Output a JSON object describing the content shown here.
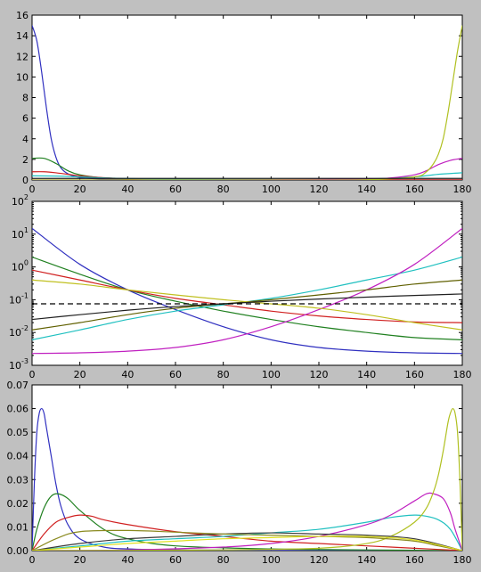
{
  "figure": {
    "background": "#c0c0c0"
  },
  "chart_data": [
    {
      "type": "line",
      "yscale": "linear",
      "xlim": [
        0,
        180
      ],
      "ylim": [
        0,
        16
      ],
      "xticks": [
        0,
        20,
        40,
        60,
        80,
        100,
        120,
        140,
        160,
        180
      ],
      "xtick_labels": [
        "0",
        "20",
        "40",
        "60",
        "80",
        "100",
        "120",
        "140",
        "160",
        "180"
      ],
      "yticks": [
        0,
        2,
        4,
        6,
        8,
        10,
        12,
        14,
        16
      ],
      "ytick_labels": [
        "0",
        "2",
        "4",
        "6",
        "8",
        "10",
        "12",
        "14",
        "16"
      ],
      "series": [
        {
          "color": "#3030c0",
          "x": [
            0,
            2,
            4,
            6,
            8,
            10,
            12,
            15,
            20,
            30,
            40,
            60,
            100,
            140,
            180
          ],
          "values": [
            15.0,
            13.5,
            10.5,
            7.0,
            4.0,
            2.2,
            1.2,
            0.6,
            0.25,
            0.08,
            0.04,
            0.015,
            0.005,
            0.003,
            0.002
          ]
        },
        {
          "color": "#208020",
          "x": [
            0,
            5,
            10,
            15,
            20,
            30,
            40,
            60,
            100,
            140,
            180
          ],
          "values": [
            2.1,
            2.1,
            1.6,
            0.9,
            0.5,
            0.2,
            0.1,
            0.04,
            0.01,
            0.006,
            0.005
          ]
        },
        {
          "color": "#d02020",
          "x": [
            0,
            5,
            10,
            15,
            20,
            30,
            40,
            60,
            100,
            140,
            180
          ],
          "values": [
            0.8,
            0.8,
            0.7,
            0.55,
            0.4,
            0.22,
            0.12,
            0.05,
            0.02,
            0.015,
            0.012
          ]
        },
        {
          "color": "#20c0c0",
          "x": [
            0,
            10,
            20,
            30,
            40,
            60,
            100,
            140,
            160,
            170,
            180
          ],
          "values": [
            0.4,
            0.38,
            0.3,
            0.2,
            0.14,
            0.08,
            0.05,
            0.1,
            0.3,
            0.55,
            0.7
          ]
        },
        {
          "color": "#c020c0",
          "x": [
            0,
            40,
            100,
            140,
            150,
            160,
            165,
            170,
            175,
            180
          ],
          "values": [
            0.002,
            0.004,
            0.02,
            0.1,
            0.2,
            0.5,
            0.9,
            1.5,
            1.9,
            2.1
          ]
        },
        {
          "color": "#b0c020",
          "x": [
            0,
            40,
            100,
            140,
            160,
            165,
            168,
            170,
            172,
            174,
            176,
            178,
            180
          ],
          "values": [
            0.002,
            0.003,
            0.005,
            0.02,
            0.3,
            0.8,
            1.6,
            2.5,
            4.0,
            6.5,
            9.5,
            12.5,
            15.0
          ]
        },
        {
          "color": "#202020",
          "x": [
            0,
            180
          ],
          "values": [
            0.15,
            0.15
          ]
        }
      ]
    },
    {
      "type": "line",
      "yscale": "log",
      "xlim": [
        0,
        180
      ],
      "ylim": [
        0.001,
        100
      ],
      "xticks": [
        0,
        20,
        40,
        60,
        80,
        100,
        120,
        140,
        160,
        180
      ],
      "xtick_labels": [
        "0",
        "20",
        "40",
        "60",
        "80",
        "100",
        "120",
        "140",
        "160",
        "180"
      ],
      "yticks": [
        0.001,
        0.01,
        0.1,
        1,
        10,
        100
      ],
      "ytick_labels": [
        {
          "base": "10",
          "exp": "-3"
        },
        {
          "base": "10",
          "exp": "-2"
        },
        {
          "base": "10",
          "exp": "-1"
        },
        {
          "base": "10",
          "exp": "0"
        },
        {
          "base": "10",
          "exp": "1"
        },
        {
          "base": "10",
          "exp": "2"
        }
      ],
      "reference_line": {
        "y": 0.075,
        "style": "dashed",
        "color": "#000000"
      },
      "series": [
        {
          "color": "#3030c0",
          "x": [
            0,
            20,
            40,
            60,
            80,
            100,
            120,
            140,
            160,
            180
          ],
          "values": [
            15,
            1.2,
            0.2,
            0.05,
            0.015,
            0.006,
            0.0035,
            0.0027,
            0.0024,
            0.0023
          ]
        },
        {
          "color": "#208020",
          "x": [
            0,
            20,
            40,
            60,
            80,
            100,
            120,
            140,
            160,
            180
          ],
          "values": [
            2.0,
            0.6,
            0.2,
            0.09,
            0.045,
            0.025,
            0.015,
            0.01,
            0.007,
            0.006
          ]
        },
        {
          "color": "#d02020",
          "x": [
            0,
            20,
            40,
            60,
            80,
            100,
            120,
            140,
            160,
            180
          ],
          "values": [
            0.8,
            0.4,
            0.2,
            0.11,
            0.07,
            0.045,
            0.032,
            0.025,
            0.021,
            0.02
          ]
        },
        {
          "color": "#20c0c0",
          "x": [
            0,
            20,
            40,
            60,
            80,
            100,
            120,
            140,
            160,
            180
          ],
          "values": [
            0.006,
            0.012,
            0.025,
            0.045,
            0.07,
            0.11,
            0.2,
            0.4,
            0.8,
            2.0
          ]
        },
        {
          "color": "#c020c0",
          "x": [
            0,
            20,
            40,
            60,
            80,
            100,
            120,
            140,
            160,
            180
          ],
          "values": [
            0.0023,
            0.0024,
            0.0027,
            0.0035,
            0.006,
            0.015,
            0.05,
            0.2,
            1.2,
            15
          ]
        },
        {
          "color": "#606000",
          "x": [
            0,
            20,
            40,
            60,
            80,
            100,
            120,
            140,
            160,
            180
          ],
          "values": [
            0.012,
            0.02,
            0.035,
            0.055,
            0.075,
            0.1,
            0.14,
            0.2,
            0.3,
            0.4
          ]
        },
        {
          "color": "#c0c020",
          "x": [
            0,
            20,
            40,
            60,
            80,
            100,
            120,
            140,
            160,
            180
          ],
          "values": [
            0.4,
            0.3,
            0.2,
            0.14,
            0.1,
            0.075,
            0.055,
            0.035,
            0.02,
            0.012
          ]
        },
        {
          "color": "#202020",
          "x": [
            0,
            20,
            40,
            60,
            80,
            100,
            120,
            140,
            160,
            180
          ],
          "values": [
            0.025,
            0.035,
            0.048,
            0.062,
            0.075,
            0.09,
            0.105,
            0.12,
            0.135,
            0.15
          ]
        }
      ]
    },
    {
      "type": "line",
      "yscale": "linear",
      "xlim": [
        0,
        180
      ],
      "ylim": [
        0,
        0.07
      ],
      "xticks": [
        0,
        20,
        40,
        60,
        80,
        100,
        120,
        140,
        160,
        180
      ],
      "xtick_labels": [
        "0",
        "20",
        "40",
        "60",
        "80",
        "100",
        "120",
        "140",
        "160",
        "180"
      ],
      "yticks": [
        0,
        0.01,
        0.02,
        0.03,
        0.04,
        0.05,
        0.06,
        0.07
      ],
      "ytick_labels": [
        "0.00",
        "0.01",
        "0.02",
        "0.03",
        "0.04",
        "0.05",
        "0.06",
        "0.07"
      ],
      "series": [
        {
          "color": "#3030c0",
          "x": [
            0,
            1,
            2,
            3,
            4,
            5,
            6,
            8,
            10,
            12,
            15,
            20,
            30,
            40,
            60,
            100,
            140,
            180
          ],
          "values": [
            0,
            0.03,
            0.05,
            0.058,
            0.06,
            0.058,
            0.052,
            0.04,
            0.028,
            0.019,
            0.011,
            0.005,
            0.0015,
            0.0007,
            0.0003,
            0.0001,
            5e-05,
            0
          ]
        },
        {
          "color": "#208020",
          "x": [
            0,
            2,
            5,
            8,
            11,
            15,
            20,
            30,
            40,
            60,
            100,
            140,
            180
          ],
          "values": [
            0,
            0.009,
            0.018,
            0.023,
            0.024,
            0.022,
            0.017,
            0.009,
            0.005,
            0.002,
            0.0007,
            0.0003,
            0
          ]
        },
        {
          "color": "#d02020",
          "x": [
            0,
            5,
            10,
            15,
            20,
            25,
            30,
            40,
            60,
            80,
            100,
            120,
            140,
            160,
            180
          ],
          "values": [
            0,
            0.007,
            0.012,
            0.014,
            0.015,
            0.0145,
            0.013,
            0.011,
            0.008,
            0.006,
            0.004,
            0.003,
            0.002,
            0.001,
            0
          ]
        },
        {
          "color": "#20c0c0",
          "x": [
            0,
            20,
            40,
            60,
            80,
            100,
            120,
            140,
            150,
            160,
            165,
            170,
            175,
            180
          ],
          "values": [
            0,
            0.002,
            0.004,
            0.005,
            0.006,
            0.0075,
            0.009,
            0.012,
            0.014,
            0.015,
            0.0145,
            0.013,
            0.009,
            0
          ]
        },
        {
          "color": "#c020c0",
          "x": [
            0,
            40,
            80,
            100,
            120,
            140,
            150,
            160,
            165,
            168,
            172,
            175,
            177,
            180
          ],
          "values": [
            0,
            0.0003,
            0.0015,
            0.003,
            0.006,
            0.011,
            0.015,
            0.021,
            0.024,
            0.024,
            0.022,
            0.016,
            0.009,
            0
          ]
        },
        {
          "color": "#b0c020",
          "x": [
            0,
            40,
            80,
            120,
            140,
            150,
            160,
            165,
            168,
            170,
            172,
            174,
            175,
            176,
            177,
            178,
            179,
            180
          ],
          "values": [
            0,
            0.0001,
            0.0003,
            0.001,
            0.003,
            0.006,
            0.012,
            0.018,
            0.025,
            0.032,
            0.042,
            0.054,
            0.058,
            0.06,
            0.058,
            0.05,
            0.03,
            0
          ]
        },
        {
          "color": "#3a3a3a",
          "x": [
            0,
            20,
            40,
            60,
            80,
            100,
            120,
            140,
            160,
            180
          ],
          "values": [
            0,
            0.003,
            0.005,
            0.006,
            0.007,
            0.0075,
            0.007,
            0.0065,
            0.005,
            0
          ]
        },
        {
          "color": "#8a8a20",
          "x": [
            0,
            10,
            20,
            40,
            60,
            80,
            100,
            120,
            140,
            160,
            170,
            180
          ],
          "values": [
            0,
            0.005,
            0.008,
            0.0085,
            0.0078,
            0.007,
            0.0065,
            0.006,
            0.0055,
            0.004,
            0.002,
            0
          ]
        },
        {
          "color": "#e0e020",
          "x": [
            0,
            20,
            40,
            60,
            80,
            100,
            120,
            140,
            160,
            180
          ],
          "values": [
            0,
            0.0015,
            0.003,
            0.004,
            0.005,
            0.0055,
            0.006,
            0.006,
            0.0045,
            0
          ]
        }
      ]
    }
  ]
}
